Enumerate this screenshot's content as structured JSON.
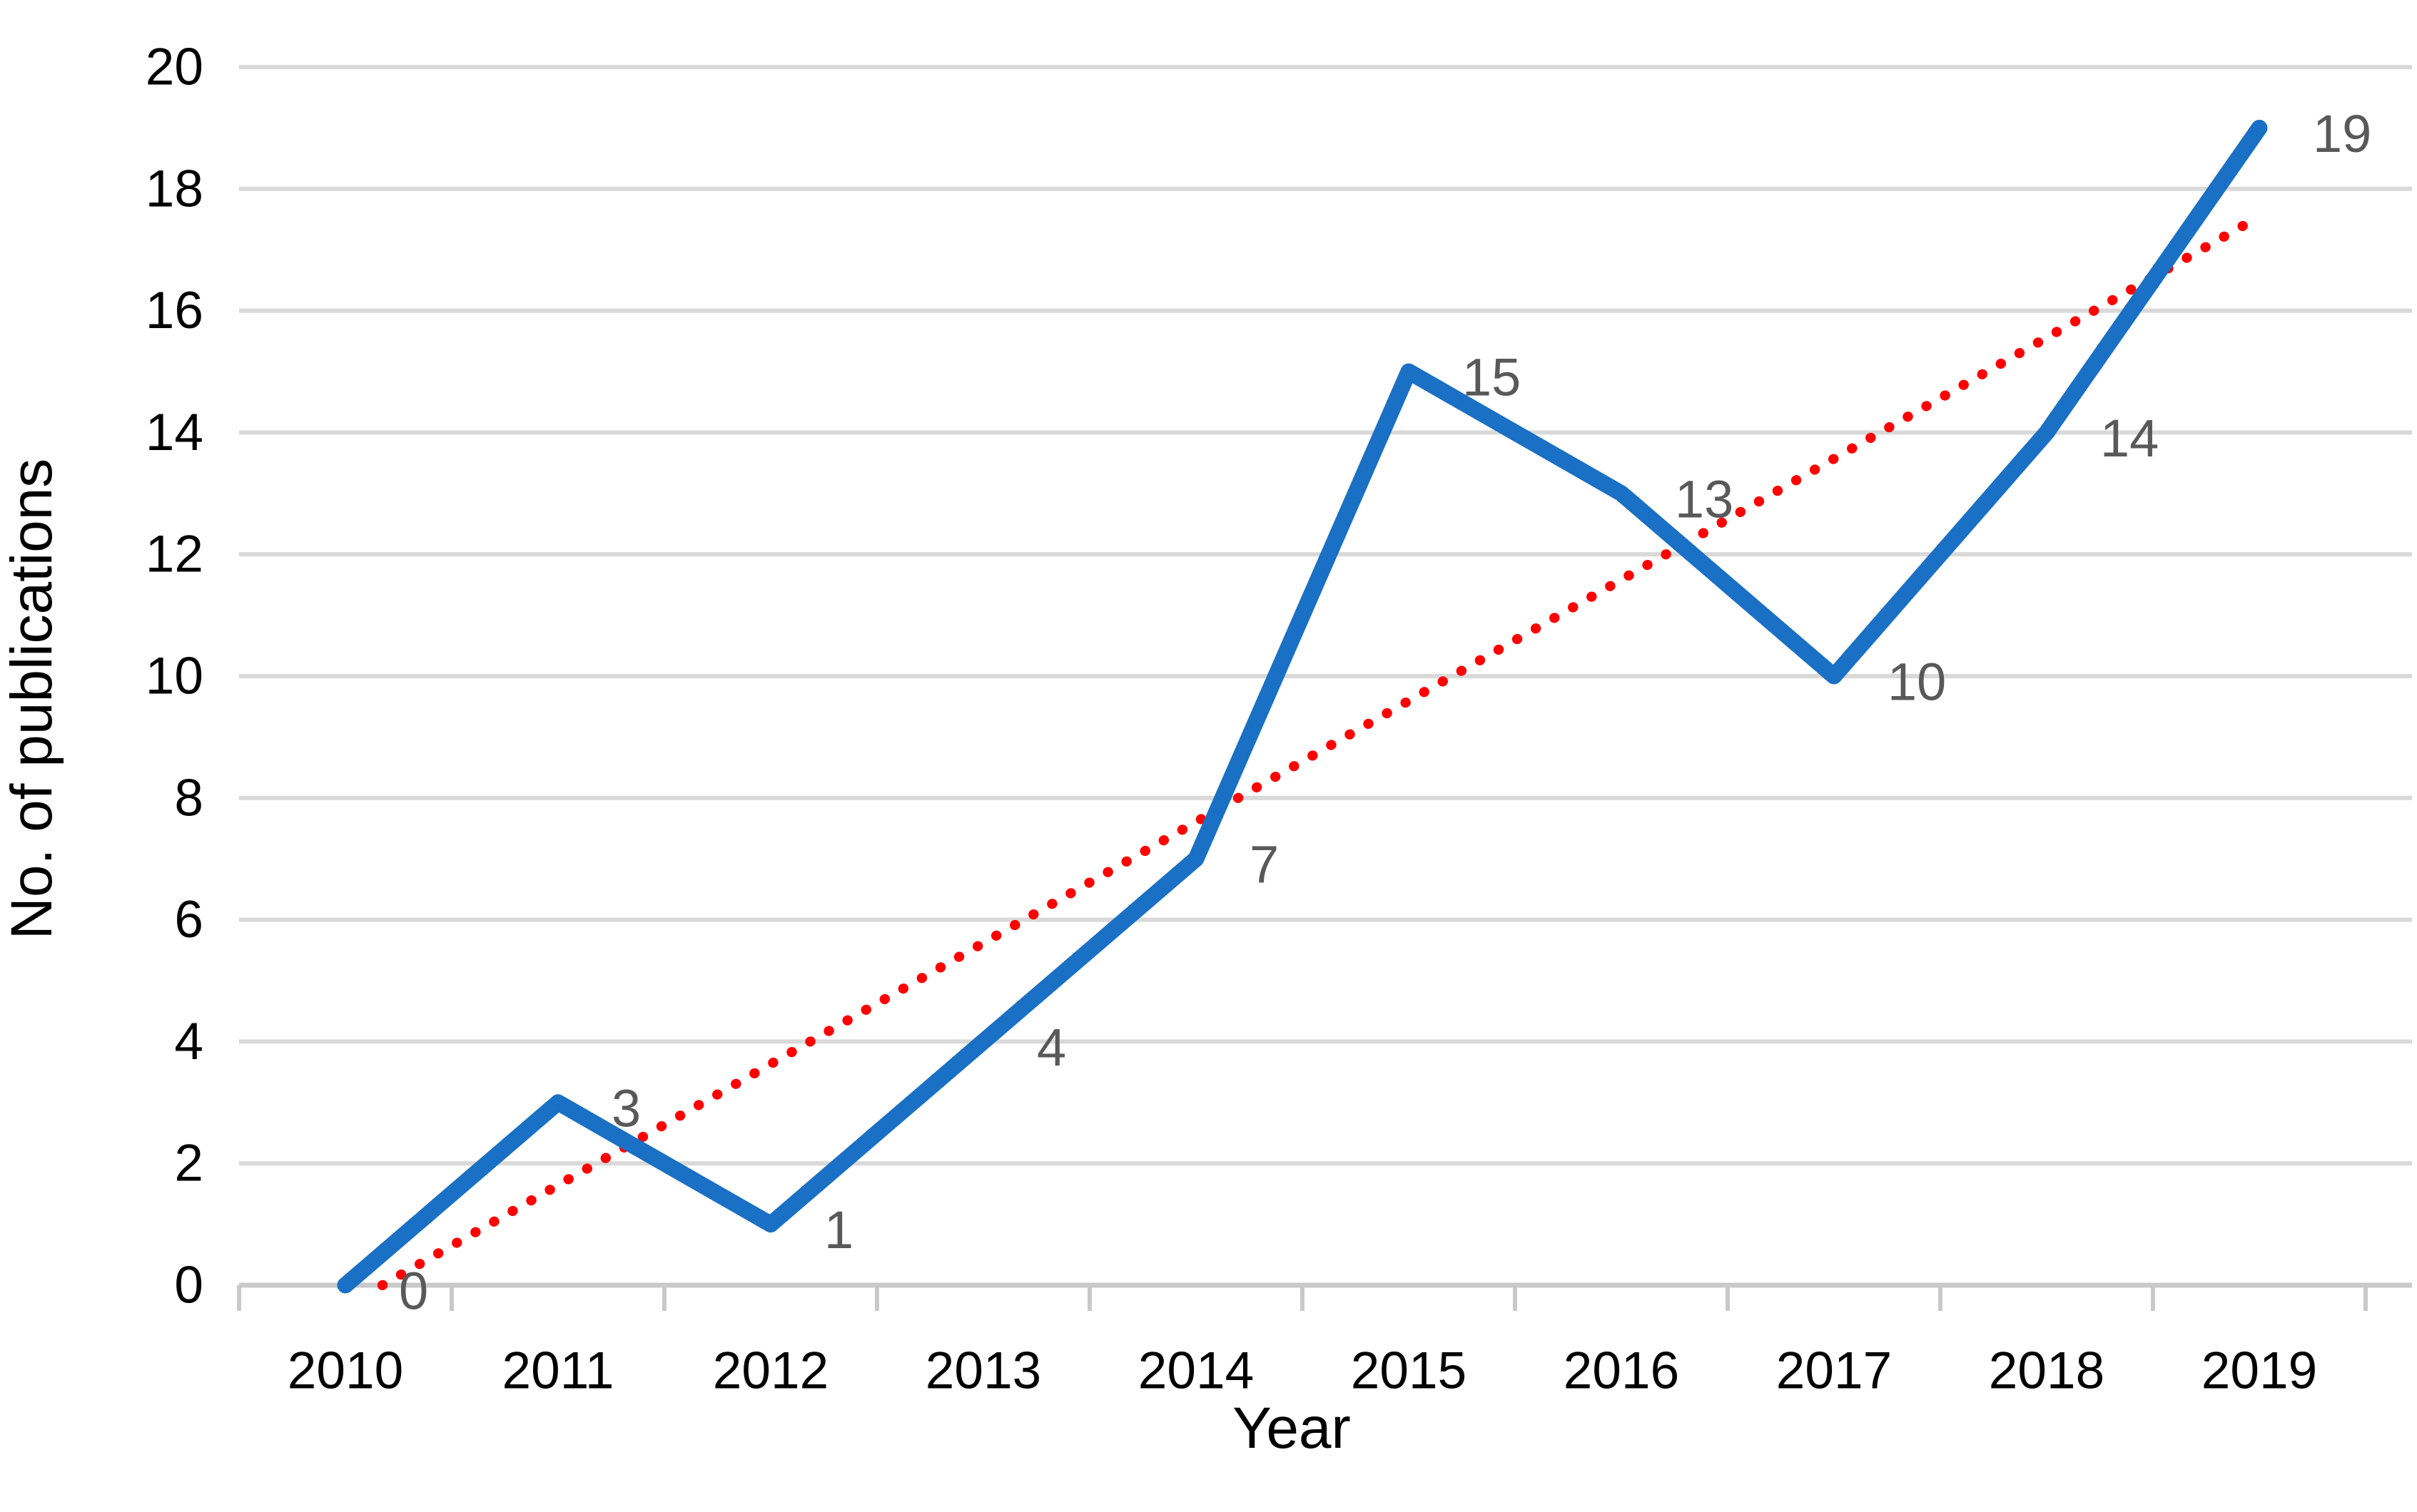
{
  "page": {
    "background": "#FFFFFF"
  },
  "chart_data": {
    "type": "line",
    "title": "",
    "xlabel": "Year",
    "ylabel": "No. of publications",
    "categories": [
      "2010",
      "2011",
      "2012",
      "2013",
      "2014",
      "2015",
      "2016",
      "2017",
      "2018",
      "2019"
    ],
    "series": [
      {
        "name": "No. of publications",
        "values": [
          0,
          3,
          1,
          4,
          7,
          15,
          13,
          10,
          14,
          19
        ],
        "color": "#1A70C4",
        "line_style": "solid",
        "data_labels_visible": true,
        "data_labels": [
          "0",
          "3",
          "1",
          "4",
          "7",
          "15",
          "13",
          "10",
          "14",
          "19"
        ]
      }
    ],
    "trendline": {
      "type": "linear",
      "applies_to": "No. of publications",
      "color": "#FF0000",
      "style": "dotted",
      "clip_at_y_min": true,
      "approx_start_value": 0,
      "approx_end_value": 17.5
    },
    "ylim": [
      0,
      20
    ],
    "ytick_step": 2,
    "y_tick_labels": [
      "0",
      "2",
      "4",
      "6",
      "8",
      "10",
      "12",
      "14",
      "16",
      "18",
      "20"
    ],
    "grid": "horizontal",
    "legend": "none",
    "colors": {
      "gridline": "#D9D9D9",
      "axis_line": "#C9C9C9",
      "tick_mark": "#C9C9C9",
      "axis_tick_label": "#000000",
      "axis_title": "#000000",
      "data_label": "#595959"
    }
  }
}
